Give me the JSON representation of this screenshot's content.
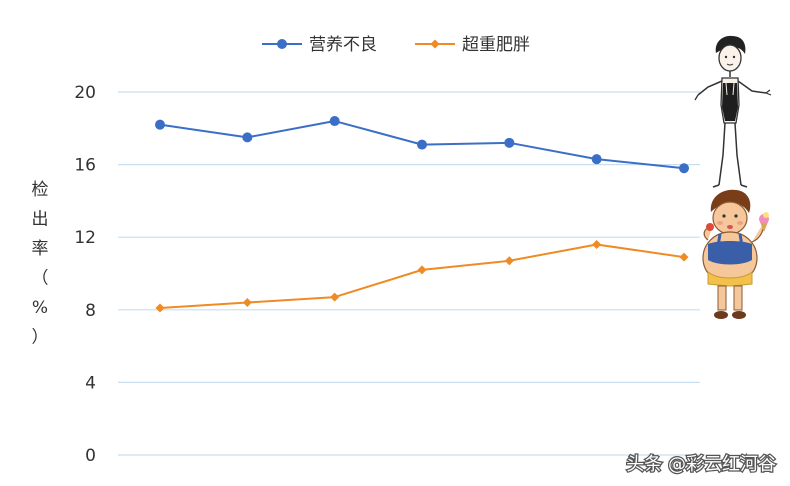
{
  "chart_data": {
    "type": "line",
    "title": "",
    "xlabel": "",
    "ylabel": "检出率（%）",
    "ylabel_chars": [
      "检",
      "出",
      "率",
      "（",
      "%",
      "）"
    ],
    "ylim": [
      0,
      20
    ],
    "yticks": [
      "0",
      "4",
      "8",
      "12",
      "16",
      "20"
    ],
    "ytick_values": [
      0,
      4,
      8,
      12,
      16,
      20
    ],
    "grid": "horizontal",
    "legend_position": "top-center",
    "x": [
      1,
      2,
      3,
      4,
      5,
      6,
      7
    ],
    "series": [
      {
        "name": "营养不良",
        "color": "#3b6fc7",
        "marker": "circle",
        "values": [
          18.2,
          17.5,
          18.4,
          17.1,
          17.2,
          16.3,
          15.8
        ]
      },
      {
        "name": "超重肥胖",
        "color": "#f08a24",
        "marker": "diamond",
        "values": [
          8.1,
          8.4,
          8.7,
          10.2,
          10.7,
          11.6,
          10.9
        ]
      }
    ]
  },
  "colors": {
    "grid": "#c9dff0",
    "axis_text": "#333333"
  },
  "illustrations": {
    "thin_figure": "thin-child-illustration",
    "overweight_figure": "overweight-child-illustration"
  },
  "watermark": {
    "text": "头条 @彩云红河谷"
  }
}
